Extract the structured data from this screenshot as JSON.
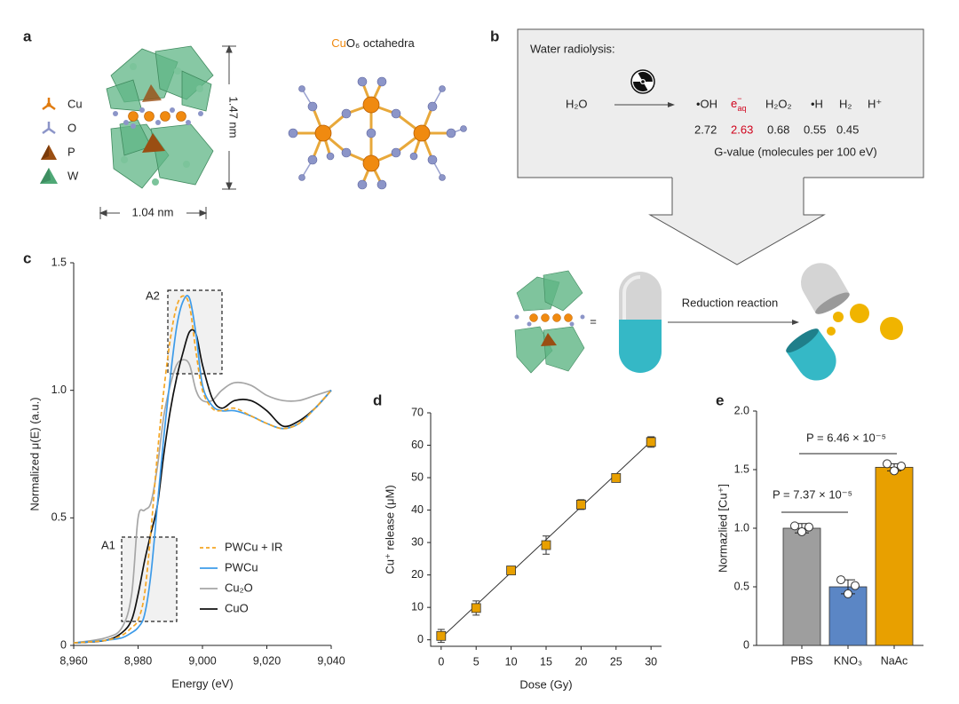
{
  "panel_labels": [
    "a",
    "b",
    "c",
    "d",
    "e"
  ],
  "panel_a": {
    "legend": [
      "Cu",
      "O",
      "P",
      "W"
    ],
    "height_label": "1.47 nm",
    "width_label": "1.04 nm",
    "octahedra_title": [
      "Cu",
      "O₆ octahedra"
    ]
  },
  "panel_b": {
    "title": "Water radiolysis:",
    "reactant": "H₂O",
    "products": [
      "•OH",
      "e",
      "H₂O₂",
      "•H",
      "H₂",
      "H⁺"
    ],
    "electron_sup": "−",
    "electron_sub": "aq",
    "g_values": [
      2.72,
      2.63,
      0.68,
      0.55,
      0.45
    ],
    "g_value_caption": "G-value (molecules per 100 eV)",
    "equals": "=",
    "reaction_label": "Reduction reaction"
  },
  "chart_data": [
    {
      "type": "line",
      "xlabel": "Energy (eV)",
      "ylabel": "Normalized μ(E) (a.u.)",
      "x": [
        8960,
        8970,
        8975,
        8978,
        8980,
        8982,
        8984,
        8986,
        8988,
        8990,
        8992,
        8994,
        8996,
        8998,
        9000,
        9003,
        9006,
        9010,
        9015,
        9020,
        9025,
        9030,
        9035,
        9040
      ],
      "xlim": [
        8960,
        9040
      ],
      "xticks": [
        {
          "value": 8960,
          "label": "8,960"
        },
        {
          "value": 8980,
          "label": "8,980"
        },
        {
          "value": 9000,
          "label": "9,000"
        },
        {
          "value": 9020,
          "label": "9,020"
        },
        {
          "value": 9040,
          "label": "9,040"
        }
      ],
      "ylim": [
        0,
        1.5
      ],
      "yticks": [
        0,
        0.5,
        {
          "value": 1,
          "label": "1.0"
        },
        1.5
      ],
      "annotations": [
        "A1",
        "A2"
      ],
      "legend": "lower right",
      "series": [
        {
          "name": "PWCu + IR",
          "color": "#f5a623",
          "dashed": true,
          "values": [
            0.01,
            0.02,
            0.04,
            0.07,
            0.1,
            0.2,
            0.45,
            0.75,
            1.0,
            1.2,
            1.33,
            1.37,
            1.33,
            1.15,
            1.0,
            0.93,
            0.92,
            0.93,
            0.9,
            0.87,
            0.85,
            0.87,
            0.93,
            1.0
          ]
        },
        {
          "name": "PWCu",
          "color": "#3d9be9",
          "dashed": false,
          "values": [
            0.01,
            0.02,
            0.03,
            0.05,
            0.07,
            0.12,
            0.28,
            0.55,
            0.82,
            1.05,
            1.25,
            1.35,
            1.36,
            1.22,
            1.02,
            0.94,
            0.92,
            0.92,
            0.9,
            0.87,
            0.85,
            0.87,
            0.93,
            1.0
          ]
        },
        {
          "name": "Cu₂O",
          "color": "#a6a6a6",
          "dashed": false,
          "values": [
            0.01,
            0.03,
            0.07,
            0.2,
            0.5,
            0.53,
            0.56,
            0.7,
            0.9,
            1.02,
            1.1,
            1.12,
            1.1,
            1.0,
            0.96,
            0.96,
            1.0,
            1.03,
            1.02,
            0.98,
            0.96,
            0.96,
            0.98,
            1.0
          ]
        },
        {
          "name": "CuO",
          "color": "#111111",
          "dashed": false,
          "values": [
            0.01,
            0.02,
            0.05,
            0.1,
            0.2,
            0.33,
            0.44,
            0.55,
            0.75,
            0.92,
            1.05,
            1.15,
            1.23,
            1.22,
            1.1,
            0.97,
            0.93,
            0.96,
            0.96,
            0.92,
            0.86,
            0.88,
            0.93,
            1.0
          ]
        }
      ]
    },
    {
      "type": "scatter",
      "xlabel": "Dose (Gy)",
      "ylabel": "Cu⁺ release (μM)",
      "x": [
        0,
        5,
        10,
        15,
        20,
        25,
        30
      ],
      "xlim": [
        -1.5,
        31.5
      ],
      "xticks": [
        0,
        5,
        10,
        15,
        20,
        25,
        30
      ],
      "ylim": [
        -2,
        70
      ],
      "yticks": [
        0,
        10,
        20,
        30,
        40,
        50,
        60,
        70
      ],
      "series": [
        {
          "color": "#e8a000",
          "values": [
            1.2,
            9.8,
            21.4,
            29.2,
            41.7,
            49.9,
            61.0
          ],
          "errors": [
            2.0,
            2.2,
            0.8,
            2.8,
            1.5,
            1.0,
            1.6
          ]
        }
      ],
      "fit": {
        "x": [
          0,
          30
        ],
        "values": [
          0.6,
          61.2
        ]
      }
    },
    {
      "type": "bar",
      "ylabel": "Normazlied [Cu⁺]",
      "categories": [
        "PBS",
        "KNO₃",
        "NaAc"
      ],
      "values": [
        1.0,
        0.5,
        1.52
      ],
      "errors": [
        0.04,
        0.06,
        0.03
      ],
      "colors": [
        "#9e9e9e",
        "#5b86c5",
        "#e8a000"
      ],
      "points": [
        [
          1.02,
          0.97,
          1.01
        ],
        [
          0.56,
          0.44,
          0.51
        ],
        [
          1.55,
          1.49,
          1.53
        ]
      ],
      "ylim": [
        0,
        2
      ],
      "yticks": [
        0,
        0.5,
        {
          "value": 1,
          "label": "1.0"
        },
        1.5,
        {
          "value": 2,
          "label": "2.0"
        }
      ],
      "significance": [
        "P = 7.37 × 10⁻⁵",
        "P = 6.46 × 10⁻⁵"
      ]
    }
  ]
}
